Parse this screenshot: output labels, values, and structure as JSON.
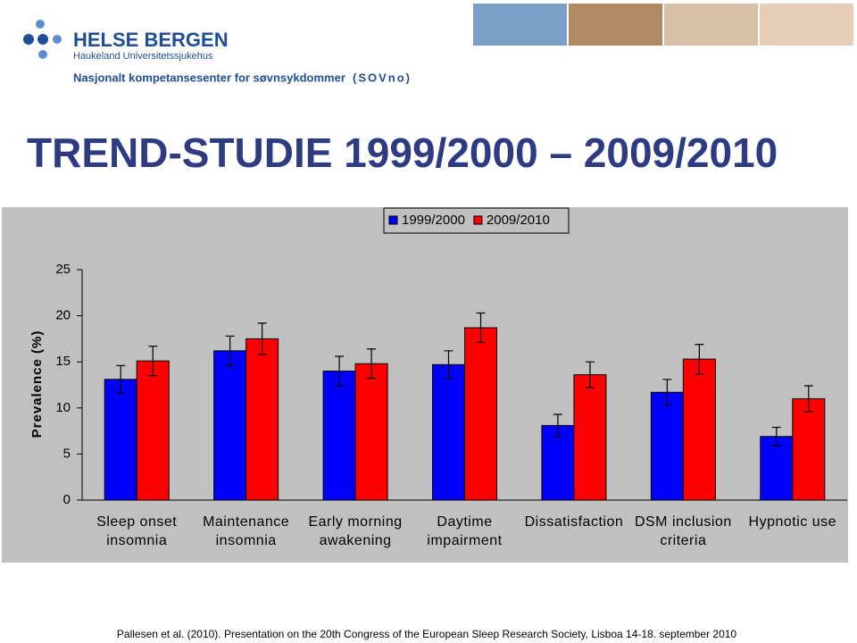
{
  "header": {
    "org": "HELSE BERGEN",
    "hospital": "Haukeland Universitetssjukehus",
    "centre": "Nasjonalt kompetansesenter for søvnsykdommer",
    "acronym": "(SOVno)"
  },
  "title": "TREND-STUDIE 1999/2000 – 2009/2010",
  "chart_data": {
    "type": "bar",
    "y_label": "Prevalence (%)",
    "categories": [
      "Sleep onset insomnia",
      "Maintenance insomnia",
      "Early morning awakening",
      "Daytime impairment",
      "Dissatisfaction",
      "DSM inclusion criteria",
      "Hypnotic use"
    ],
    "series": [
      {
        "name": "1999/2000",
        "color": "#0000ff",
        "values": [
          13.1,
          16.2,
          14.0,
          14.7,
          8.1,
          11.7,
          6.9
        ],
        "errors": [
          1.5,
          1.6,
          1.6,
          1.5,
          1.2,
          1.4,
          1.0
        ]
      },
      {
        "name": "2009/2010",
        "color": "#ff0000",
        "values": [
          15.1,
          17.5,
          14.8,
          18.7,
          13.6,
          15.3,
          11.0
        ],
        "errors": [
          1.6,
          1.7,
          1.6,
          1.6,
          1.4,
          1.6,
          1.4
        ]
      }
    ],
    "ylim": [
      0,
      25
    ],
    "yticks": [
      0,
      5,
      10,
      15,
      20,
      25
    ],
    "legend": "top"
  },
  "citation": "Pallesen et al. (2010). Presentation on the 20th Congress of the European Sleep Research Society, Lisboa 14-18. september 2010"
}
